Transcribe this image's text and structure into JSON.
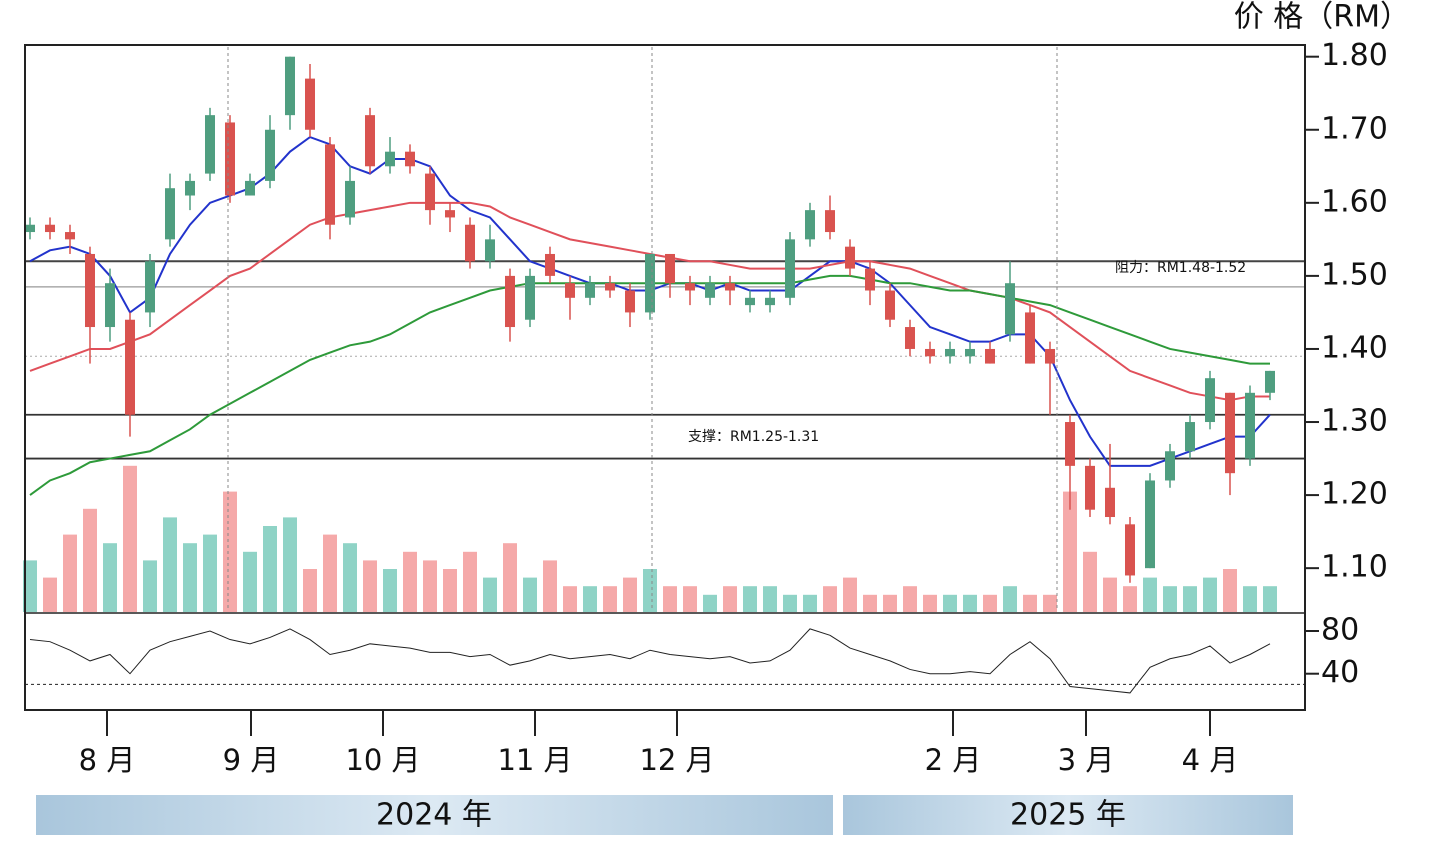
{
  "chart_data": {
    "type": "candlestick",
    "y_axis_label": "价 格（RM）",
    "ylim": [
      1.04,
      1.816
    ],
    "yticks": [
      {
        "value": 1.8,
        "label": "1.80"
      },
      {
        "value": 1.7,
        "label": "1.70"
      },
      {
        "value": 1.6,
        "label": "1.60"
      },
      {
        "value": 1.5,
        "label": "1.50"
      },
      {
        "value": 1.4,
        "label": "1.40"
      },
      {
        "value": 1.3,
        "label": "1.30"
      },
      {
        "value": 1.2,
        "label": "1.20"
      },
      {
        "value": 1.1,
        "label": "1.10"
      }
    ],
    "xlim": [
      -0.25,
      63.75
    ],
    "xticks": [
      {
        "value": 3.85,
        "label": "8 月"
      },
      {
        "value": 11.05,
        "label": "9 月"
      },
      {
        "value": 17.65,
        "label": "10 月"
      },
      {
        "value": 25.25,
        "label": "11 月"
      },
      {
        "value": 32.35,
        "label": "12 月"
      },
      {
        "value": 46.15,
        "label": "2 月"
      },
      {
        "value": 52.8,
        "label": "3 月"
      },
      {
        "value": 59.0,
        "label": "4 月"
      }
    ],
    "years": [
      "2024 年",
      "2025 年"
    ],
    "up_color": "#4f9e80",
    "down_color": "#d9534f",
    "open": [
      1.56,
      1.57,
      1.56,
      1.53,
      1.43,
      1.44,
      1.45,
      1.55,
      1.61,
      1.64,
      1.71,
      1.61,
      1.63,
      1.72,
      1.77,
      1.68,
      1.58,
      1.72,
      1.65,
      1.67,
      1.64,
      1.59,
      1.57,
      1.52,
      1.5,
      1.44,
      1.53,
      1.49,
      1.47,
      1.49,
      1.48,
      1.45,
      1.53,
      1.49,
      1.47,
      1.49,
      1.46,
      1.46,
      1.47,
      1.55,
      1.59,
      1.54,
      1.51,
      1.48,
      1.43,
      1.4,
      1.39,
      1.39,
      1.4,
      1.42,
      1.45,
      1.4,
      1.3,
      1.24,
      1.21,
      1.16,
      1.1,
      1.22,
      1.26,
      1.3,
      1.34,
      1.25,
      1.34
    ],
    "high": [
      1.58,
      1.58,
      1.57,
      1.54,
      1.51,
      1.45,
      1.53,
      1.64,
      1.64,
      1.73,
      1.72,
      1.64,
      1.72,
      1.8,
      1.79,
      1.69,
      1.65,
      1.73,
      1.69,
      1.68,
      1.65,
      1.6,
      1.58,
      1.57,
      1.51,
      1.51,
      1.54,
      1.5,
      1.5,
      1.5,
      1.49,
      1.53,
      1.53,
      1.5,
      1.5,
      1.5,
      1.48,
      1.48,
      1.56,
      1.6,
      1.61,
      1.55,
      1.52,
      1.49,
      1.44,
      1.41,
      1.41,
      1.41,
      1.41,
      1.52,
      1.46,
      1.41,
      1.31,
      1.25,
      1.27,
      1.17,
      1.23,
      1.27,
      1.31,
      1.37,
      1.34,
      1.35,
      1.37
    ],
    "low": [
      1.55,
      1.55,
      1.53,
      1.38,
      1.41,
      1.28,
      1.43,
      1.54,
      1.59,
      1.63,
      1.6,
      1.61,
      1.62,
      1.7,
      1.69,
      1.55,
      1.57,
      1.64,
      1.64,
      1.64,
      1.57,
      1.56,
      1.51,
      1.51,
      1.41,
      1.43,
      1.49,
      1.44,
      1.46,
      1.47,
      1.43,
      1.44,
      1.47,
      1.46,
      1.46,
      1.46,
      1.45,
      1.45,
      1.46,
      1.54,
      1.55,
      1.5,
      1.46,
      1.43,
      1.39,
      1.38,
      1.38,
      1.38,
      1.38,
      1.41,
      1.38,
      1.31,
      1.18,
      1.17,
      1.16,
      1.08,
      1.1,
      1.21,
      1.25,
      1.29,
      1.2,
      1.24,
      1.33
    ],
    "close": [
      1.57,
      1.56,
      1.55,
      1.43,
      1.49,
      1.31,
      1.52,
      1.62,
      1.63,
      1.72,
      1.61,
      1.63,
      1.7,
      1.8,
      1.7,
      1.57,
      1.63,
      1.65,
      1.67,
      1.65,
      1.59,
      1.58,
      1.52,
      1.55,
      1.43,
      1.5,
      1.5,
      1.47,
      1.49,
      1.48,
      1.45,
      1.53,
      1.49,
      1.48,
      1.49,
      1.48,
      1.47,
      1.47,
      1.55,
      1.59,
      1.56,
      1.51,
      1.48,
      1.44,
      1.4,
      1.39,
      1.4,
      1.4,
      1.38,
      1.49,
      1.38,
      1.38,
      1.24,
      1.18,
      1.17,
      1.09,
      1.22,
      1.26,
      1.3,
      1.36,
      1.23,
      1.34,
      1.37
    ],
    "series": [
      {
        "color": "#2233cc",
        "values": [
          1.52,
          1.535,
          1.54,
          1.53,
          1.5,
          1.45,
          1.47,
          1.53,
          1.57,
          1.6,
          1.61,
          1.62,
          1.64,
          1.67,
          1.69,
          1.68,
          1.65,
          1.64,
          1.66,
          1.66,
          1.65,
          1.61,
          1.59,
          1.58,
          1.55,
          1.52,
          1.51,
          1.5,
          1.49,
          1.49,
          1.48,
          1.48,
          1.49,
          1.49,
          1.48,
          1.49,
          1.48,
          1.48,
          1.48,
          1.5,
          1.52,
          1.52,
          1.51,
          1.49,
          1.46,
          1.43,
          1.42,
          1.41,
          1.41,
          1.42,
          1.42,
          1.39,
          1.33,
          1.28,
          1.24,
          1.24,
          1.24,
          1.25,
          1.26,
          1.27,
          1.28,
          1.28,
          1.31
        ]
      },
      {
        "color": "#e0505a",
        "values": [
          1.37,
          1.38,
          1.39,
          1.4,
          1.4,
          1.41,
          1.42,
          1.44,
          1.46,
          1.48,
          1.5,
          1.51,
          1.53,
          1.55,
          1.57,
          1.58,
          1.585,
          1.59,
          1.595,
          1.6,
          1.6,
          1.6,
          1.6,
          1.595,
          1.58,
          1.57,
          1.56,
          1.55,
          1.545,
          1.54,
          1.535,
          1.53,
          1.525,
          1.52,
          1.52,
          1.515,
          1.51,
          1.51,
          1.51,
          1.51,
          1.515,
          1.52,
          1.52,
          1.515,
          1.51,
          1.5,
          1.49,
          1.48,
          1.475,
          1.47,
          1.46,
          1.45,
          1.43,
          1.41,
          1.39,
          1.37,
          1.36,
          1.35,
          1.34,
          1.335,
          1.33,
          1.335,
          1.335
        ]
      },
      {
        "color": "#2e9a3a",
        "values": [
          1.2,
          1.22,
          1.23,
          1.245,
          1.25,
          1.255,
          1.26,
          1.275,
          1.29,
          1.31,
          1.325,
          1.34,
          1.355,
          1.37,
          1.385,
          1.395,
          1.405,
          1.41,
          1.42,
          1.435,
          1.45,
          1.46,
          1.47,
          1.48,
          1.485,
          1.49,
          1.49,
          1.49,
          1.49,
          1.49,
          1.49,
          1.49,
          1.49,
          1.49,
          1.49,
          1.49,
          1.49,
          1.49,
          1.49,
          1.495,
          1.5,
          1.5,
          1.495,
          1.49,
          1.49,
          1.485,
          1.48,
          1.48,
          1.475,
          1.47,
          1.465,
          1.46,
          1.45,
          1.44,
          1.43,
          1.42,
          1.41,
          1.4,
          1.395,
          1.39,
          1.385,
          1.38,
          1.38
        ]
      }
    ],
    "volume": [
      30,
      20,
      45,
      60,
      40,
      85,
      30,
      55,
      40,
      45,
      70,
      35,
      50,
      55,
      25,
      45,
      40,
      30,
      25,
      35,
      30,
      25,
      35,
      20,
      40,
      20,
      30,
      15,
      15,
      15,
      20,
      25,
      15,
      15,
      10,
      15,
      15,
      15,
      10,
      10,
      15,
      20,
      10,
      10,
      15,
      10,
      10,
      10,
      10,
      15,
      10,
      10,
      70,
      35,
      20,
      15,
      20,
      15,
      15,
      20,
      25,
      15,
      15
    ],
    "vlim": [
      0,
      100
    ],
    "rsi": [
      72,
      70,
      62,
      52,
      58,
      40,
      62,
      70,
      75,
      80,
      72,
      68,
      74,
      82,
      72,
      58,
      62,
      68,
      66,
      64,
      60,
      60,
      56,
      58,
      48,
      52,
      58,
      54,
      56,
      58,
      54,
      62,
      58,
      56,
      54,
      56,
      50,
      52,
      62,
      82,
      76,
      64,
      58,
      52,
      44,
      40,
      40,
      42,
      40,
      58,
      70,
      54,
      28,
      26,
      24,
      22,
      46,
      54,
      58,
      66,
      50,
      58,
      68
    ],
    "rsi_ylim": [
      6,
      95
    ],
    "rsi_yticks": [
      80,
      40
    ],
    "rsi_level": 30,
    "resistance": [
      1.52,
      1.485
    ],
    "support": [
      1.31,
      1.25
    ],
    "last_level": 1.39,
    "annotations": [
      "阻力：RM1.48-1.52",
      "支撑：RM1.25-1.31"
    ]
  }
}
